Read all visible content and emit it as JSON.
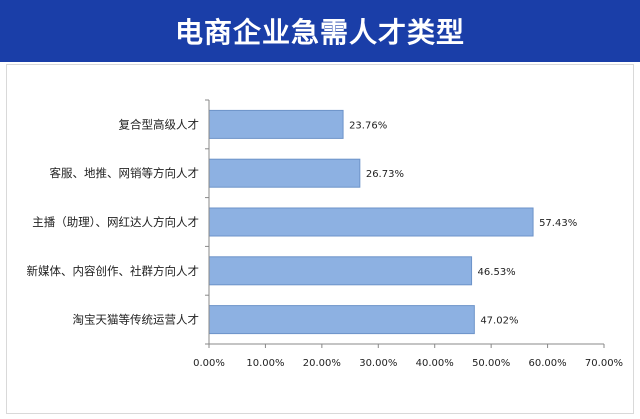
{
  "header": {
    "title": "电商企业急需人才类型"
  },
  "colors": {
    "header_bg": "#1a3ea8",
    "bar_fill": "#8db1e2",
    "bar_stroke": "#6d93c9",
    "axis": "#888888"
  },
  "chart_data": {
    "type": "bar",
    "orientation": "horizontal",
    "title": "电商企业急需人才类型",
    "categories": [
      "复合型高级人才",
      "客服、地推、网销等方向人才",
      "主播（助理）、网红达人方向人才",
      "新媒体、内容创作、社群方向人才",
      "淘宝天猫等传统运营人才"
    ],
    "values": [
      23.76,
      26.73,
      57.43,
      46.53,
      47.02
    ],
    "value_labels": [
      "23.76%",
      "26.73%",
      "57.43%",
      "46.53%",
      "47.02%"
    ],
    "xlim": [
      0,
      70
    ],
    "x_ticks": [
      "0.00%",
      "10.00%",
      "20.00%",
      "30.00%",
      "40.00%",
      "50.00%",
      "60.00%",
      "70.00%"
    ],
    "xlabel": "",
    "ylabel": "",
    "grid": false,
    "legend": "none"
  }
}
